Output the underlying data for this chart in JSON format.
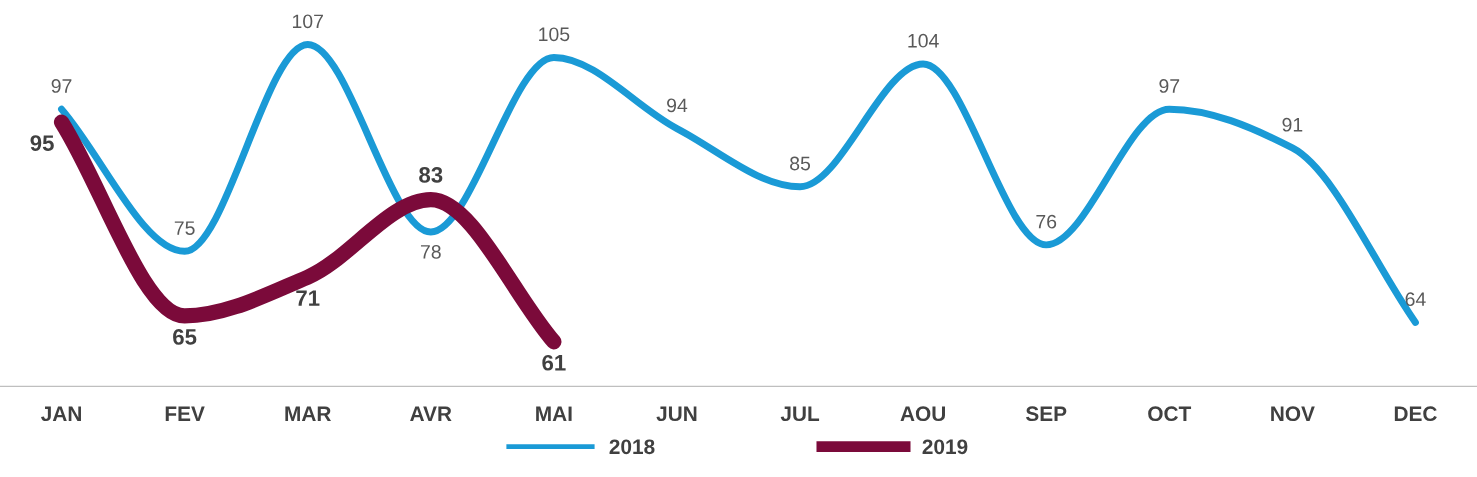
{
  "chart_data": {
    "type": "line",
    "categories": [
      "JAN",
      "FEV",
      "MAR",
      "AVR",
      "MAI",
      "JUN",
      "JUL",
      "AOU",
      "SEP",
      "OCT",
      "NOV",
      "DEC"
    ],
    "series": [
      {
        "name": "2018",
        "color": "#1a9ad6",
        "values": [
          97,
          75,
          107,
          78,
          105,
          94,
          85,
          104,
          76,
          97,
          91,
          64
        ]
      },
      {
        "name": "2019",
        "color": "#7b0a3a",
        "values": [
          95,
          65,
          71,
          83,
          61,
          null,
          null,
          null,
          null,
          null,
          null,
          null
        ]
      }
    ],
    "data_labels": true,
    "grid": false,
    "legend": "bottom",
    "marker": "none",
    "line_style": "solid"
  }
}
